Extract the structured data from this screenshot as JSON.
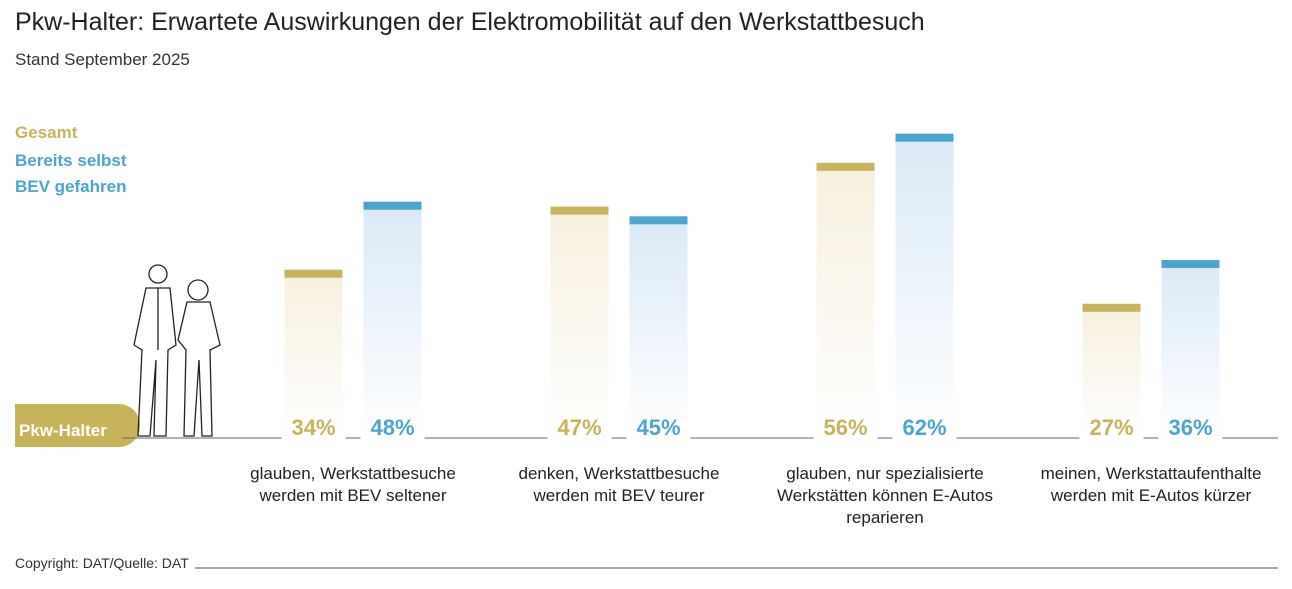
{
  "chart_data": {
    "type": "bar",
    "title": "Pkw-Halter: Erwartete Auswirkungen der Elektromobilität auf den Werkstattbesuch",
    "subtitle": "Stand September 2025",
    "group_label": "Pkw-Halter",
    "source": "Copyright: DAT/Quelle: DAT",
    "categories": [
      "glauben, Werkstattbesuche werden mit BEV seltener",
      "denken, Werkstattbesuche werden mit BEV teurer",
      "glauben, nur spezialisierte Werkstätten können E-Autos reparieren",
      "meinen, Werkstattaufenthalte werden mit E-Autos kürzer"
    ],
    "series": [
      {
        "name": "Gesamt",
        "color": "#c8b25a",
        "values": [
          34,
          47,
          56,
          27
        ],
        "value_labels": [
          "34%",
          "47%",
          "56%",
          "27%"
        ]
      },
      {
        "name": "Bereits selbst BEV gefahren",
        "color": "#4ba6cf",
        "values": [
          48,
          45,
          62,
          36
        ],
        "value_labels": [
          "48%",
          "45%",
          "62%",
          "36%"
        ]
      }
    ]
  }
}
